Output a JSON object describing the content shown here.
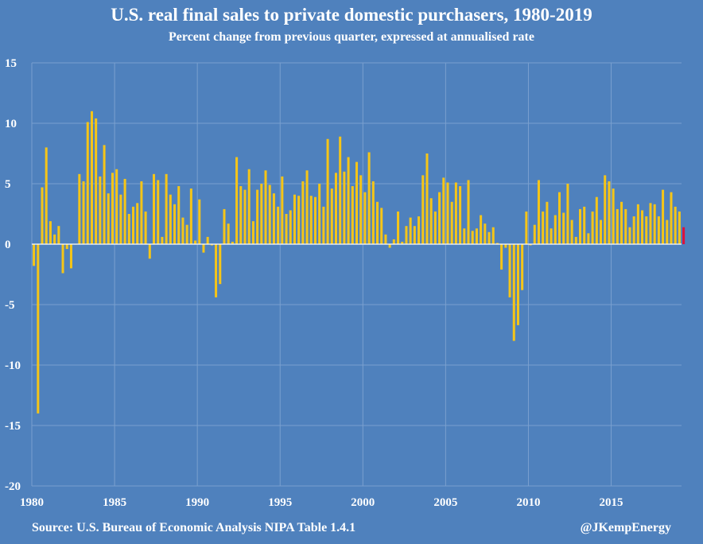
{
  "chart_data": {
    "type": "bar",
    "title": "U.S. real final sales to private domestic purchasers, 1980-2019",
    "subtitle": "Percent change from previous quarter, expressed at annualised rate",
    "xlabel": "",
    "ylabel": "",
    "ylim": [
      -20,
      15
    ],
    "yticks": [
      15,
      10,
      5,
      0,
      -5,
      -10,
      -15,
      -20
    ],
    "xlim": [
      1980,
      2019.25
    ],
    "xticks": [
      1980,
      1985,
      1990,
      1995,
      2000,
      2005,
      2010,
      2015
    ],
    "grid": true,
    "start_quarter": "1980Q1",
    "series": [
      {
        "name": "Real final sales to private domestic purchasers",
        "color": "#f5c518",
        "highlight_last_color": "#e0103a",
        "values": [
          -1.8,
          -14.0,
          4.7,
          8.0,
          1.9,
          0.8,
          1.5,
          -2.4,
          -0.4,
          -2.0,
          0.0,
          5.8,
          5.2,
          10.1,
          11.0,
          10.4,
          5.6,
          8.2,
          4.2,
          5.9,
          6.2,
          4.1,
          5.4,
          2.5,
          3.1,
          3.4,
          5.2,
          2.7,
          -1.2,
          5.8,
          5.3,
          0.6,
          5.8,
          4.1,
          3.3,
          4.8,
          2.2,
          1.6,
          4.6,
          0.3,
          3.7,
          -0.7,
          0.6,
          -0.1,
          -4.4,
          -3.3,
          2.9,
          1.7,
          0.2,
          7.2,
          4.8,
          4.5,
          6.2,
          1.9,
          4.5,
          5.0,
          6.1,
          4.9,
          4.2,
          3.1,
          5.6,
          2.5,
          2.8,
          4.1,
          4.0,
          5.2,
          6.1,
          4.0,
          3.9,
          5.0,
          3.1,
          8.7,
          4.6,
          5.9,
          8.9,
          6.0,
          7.2,
          4.8,
          6.8,
          5.7,
          4.3,
          7.6,
          5.2,
          3.5,
          3.0,
          0.8,
          -0.3,
          0.4,
          2.7,
          0.2,
          1.5,
          2.2,
          1.5,
          2.3,
          5.7,
          7.5,
          3.8,
          2.7,
          4.3,
          5.5,
          5.1,
          3.5,
          5.1,
          4.8,
          1.3,
          5.3,
          1.1,
          1.3,
          2.4,
          1.7,
          1.0,
          1.4,
          0.1,
          -2.1,
          -0.3,
          -4.4,
          -8.0,
          -6.7,
          -3.8,
          2.7,
          -0.1,
          1.6,
          5.3,
          2.7,
          3.5,
          1.3,
          2.4,
          4.3,
          2.6,
          5.0,
          2.0,
          0.6,
          2.9,
          3.1,
          0.9,
          2.7,
          3.9,
          2.0,
          5.7,
          5.2,
          4.6,
          2.9,
          3.5,
          2.9,
          1.4,
          2.3,
          3.3,
          2.8,
          2.3,
          3.4,
          3.3,
          2.3,
          4.5,
          2.0,
          4.3,
          3.1,
          2.7,
          1.4
        ]
      }
    ],
    "source": "Source: U.S. Bureau of Economic Analysis NIPA Table 1.4.1",
    "credit": "@JKempEnergy"
  },
  "colors": {
    "background": "#4f81bd",
    "bar": "#f5c518",
    "bar_last": "#e0103a",
    "grid": "#7aa0cf",
    "text": "#ffffff"
  }
}
